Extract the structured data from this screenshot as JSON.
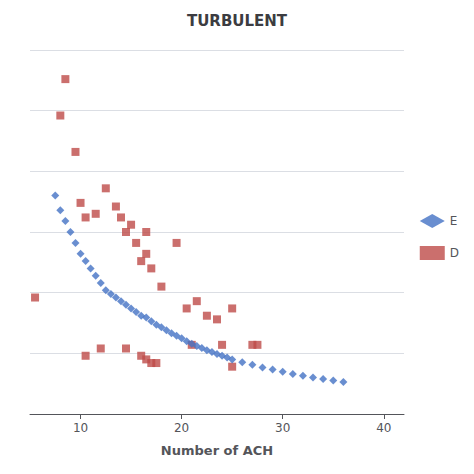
{
  "chart_data": {
    "type": "scatter",
    "title": "TURBULENT",
    "xlabel": "Number of ACH",
    "xlim": [
      5,
      42
    ],
    "xticks": [
      10,
      20,
      30,
      40
    ],
    "ylim": [
      0,
      1.0
    ],
    "yticks": [
      0,
      0.16666666666666666,
      0.3333333333333333,
      0.5,
      0.6666666666666666,
      0.8333333333333333,
      1.0
    ],
    "grid": true,
    "tick_labels": "x",
    "legend": "right",
    "series": [
      {
        "name": "E",
        "color": "#4472C4",
        "marker": "diamond",
        "x": [
          7.5,
          8.0,
          8.5,
          9.0,
          9.5,
          10.0,
          10.5,
          11.0,
          11.5,
          12.0,
          12.5,
          13.0,
          13.5,
          14.0,
          14.5,
          15.0,
          15.5,
          16.0,
          16.5,
          17.0,
          17.5,
          18.0,
          18.5,
          19.0,
          19.5,
          20.0,
          20.5,
          21.0,
          21.5,
          22.0,
          22.5,
          23.0,
          23.5,
          24.0,
          24.5,
          25.0,
          26.0,
          27.0,
          28.0,
          29.0,
          30.0,
          31.0,
          32.0,
          33.0,
          34.0,
          35.0,
          36.0
        ],
        "values": [
          0.6,
          0.56,
          0.53,
          0.5,
          0.47,
          0.44,
          0.42,
          0.4,
          0.38,
          0.36,
          0.34,
          0.33,
          0.32,
          0.31,
          0.3,
          0.29,
          0.28,
          0.27,
          0.265,
          0.255,
          0.245,
          0.238,
          0.23,
          0.222,
          0.215,
          0.208,
          0.2,
          0.193,
          0.187,
          0.181,
          0.175,
          0.17,
          0.165,
          0.16,
          0.155,
          0.15,
          0.142,
          0.135,
          0.128,
          0.122,
          0.116,
          0.11,
          0.105,
          0.1,
          0.096,
          0.092,
          0.088
        ]
      },
      {
        "name": "D",
        "color": "#BE4B48",
        "marker": "square",
        "x": [
          8.0,
          8.5,
          9.5,
          10.0,
          10.5,
          11.5,
          12.5,
          13.5,
          14.0,
          14.5,
          15.0,
          15.5,
          16.0,
          16.5,
          16.5,
          17.0,
          18.0,
          19.5,
          20.5,
          21.5,
          22.5,
          23.5,
          25.0,
          27.5,
          5.5,
          10.5,
          12.0,
          14.5,
          16.0,
          16.5,
          17.0,
          17.5,
          21.0,
          24.0,
          25.0,
          27.0
        ],
        "values": [
          0.82,
          0.92,
          0.72,
          0.58,
          0.54,
          0.55,
          0.62,
          0.57,
          0.54,
          0.5,
          0.52,
          0.47,
          0.42,
          0.5,
          0.44,
          0.4,
          0.35,
          0.47,
          0.29,
          0.31,
          0.27,
          0.26,
          0.29,
          0.19,
          0.32,
          0.16,
          0.18,
          0.18,
          0.16,
          0.15,
          0.14,
          0.14,
          0.19,
          0.19,
          0.13,
          0.19
        ]
      }
    ]
  }
}
